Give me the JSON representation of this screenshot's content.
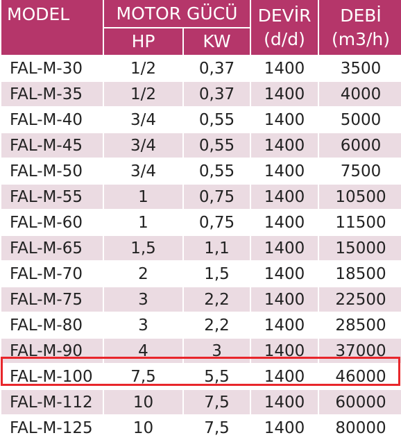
{
  "header": {
    "model": "MODEL",
    "motor": "MOTOR GÜCÜ",
    "hp": "HP",
    "kw": "KW",
    "devir": "DEVİR",
    "devir_unit": "(d/d)",
    "debi": "DEBİ",
    "debi_unit": "(m3/h)"
  },
  "rows": [
    {
      "model": "FAL-M-30",
      "hp": "1/2",
      "kw": "0,37",
      "devir": "1400",
      "debi": "3500"
    },
    {
      "model": "FAL-M-35",
      "hp": "1/2",
      "kw": "0,37",
      "devir": "1400",
      "debi": "4000"
    },
    {
      "model": "FAL-M-40",
      "hp": "3/4",
      "kw": "0,55",
      "devir": "1400",
      "debi": "5000"
    },
    {
      "model": "FAL-M-45",
      "hp": "3/4",
      "kw": "0,55",
      "devir": "1400",
      "debi": "6000"
    },
    {
      "model": "FAL-M-50",
      "hp": "3/4",
      "kw": "0,55",
      "devir": "1400",
      "debi": "7500"
    },
    {
      "model": "FAL-M-55",
      "hp": "1",
      "kw": "0,75",
      "devir": "1400",
      "debi": "10500"
    },
    {
      "model": "FAL-M-60",
      "hp": "1",
      "kw": "0,75",
      "devir": "1400",
      "debi": "11500"
    },
    {
      "model": "FAL-M-65",
      "hp": "1,5",
      "kw": "1,1",
      "devir": "1400",
      "debi": "15000"
    },
    {
      "model": "FAL-M-70",
      "hp": "2",
      "kw": "1,5",
      "devir": "1400",
      "debi": "18500"
    },
    {
      "model": "FAL-M-75",
      "hp": "3",
      "kw": "2,2",
      "devir": "1400",
      "debi": "22500"
    },
    {
      "model": "FAL-M-80",
      "hp": "3",
      "kw": "2,2",
      "devir": "1400",
      "debi": "28500"
    },
    {
      "model": "FAL-M-90",
      "hp": "4",
      "kw": "3",
      "devir": "1400",
      "debi": "37000"
    },
    {
      "model": "FAL-M-100",
      "hp": "7,5",
      "kw": "5,5",
      "devir": "1400",
      "debi": "46000"
    },
    {
      "model": "FAL-M-112",
      "hp": "10",
      "kw": "7,5",
      "devir": "1400",
      "debi": "60000"
    },
    {
      "model": "FAL-M-125",
      "hp": "10",
      "kw": "7,5",
      "devir": "1400",
      "debi": "80000"
    }
  ],
  "highlighted_model": "FAL-M-100",
  "colors": {
    "header_bg": "#b5366a",
    "stripe_bg": "#ebdbe2",
    "highlight_border": "#e8262b"
  }
}
